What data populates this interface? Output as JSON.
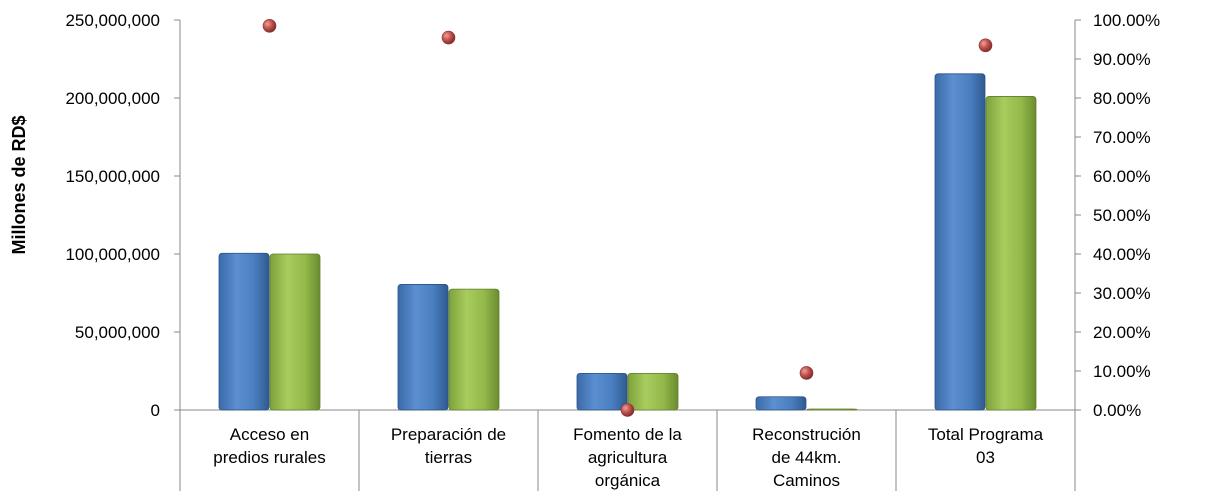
{
  "chart_data": {
    "type": "bar",
    "ylabel": "Millones de RD$",
    "ylim": [
      0,
      250000000
    ],
    "y_ticks": [
      "0",
      "50,000,000",
      "100,000,000",
      "150,000,000",
      "200,000,000",
      "250,000,000"
    ],
    "y2lim": [
      0,
      100
    ],
    "y2_ticks": [
      "0.00%",
      "10.00%",
      "20.00%",
      "30.00%",
      "40.00%",
      "50.00%",
      "60.00%",
      "70.00%",
      "80.00%",
      "90.00%",
      "100.00%"
    ],
    "categories": [
      [
        "Acceso en",
        "predios rurales"
      ],
      [
        "Preparación de",
        "tierras"
      ],
      [
        "Fomento de la",
        "agricultura",
        "orgánica"
      ],
      [
        "Reconstrución",
        "de 44km.",
        "Caminos"
      ],
      [
        "Total Programa",
        "03"
      ]
    ],
    "series": [
      {
        "type": "bar",
        "color": "#4f81bd",
        "values": [
          100500000,
          80500000,
          23500000,
          8500000,
          215500000
        ]
      },
      {
        "type": "bar",
        "color": "#9bbb59",
        "values": [
          100000000,
          77500000,
          23500000,
          500000,
          201000000
        ]
      },
      {
        "type": "scatter",
        "axis": "right",
        "color": "#c0504d",
        "values": [
          98.5,
          95.5,
          0,
          9.5,
          93.5
        ]
      }
    ],
    "grid": false,
    "legend": "none"
  }
}
